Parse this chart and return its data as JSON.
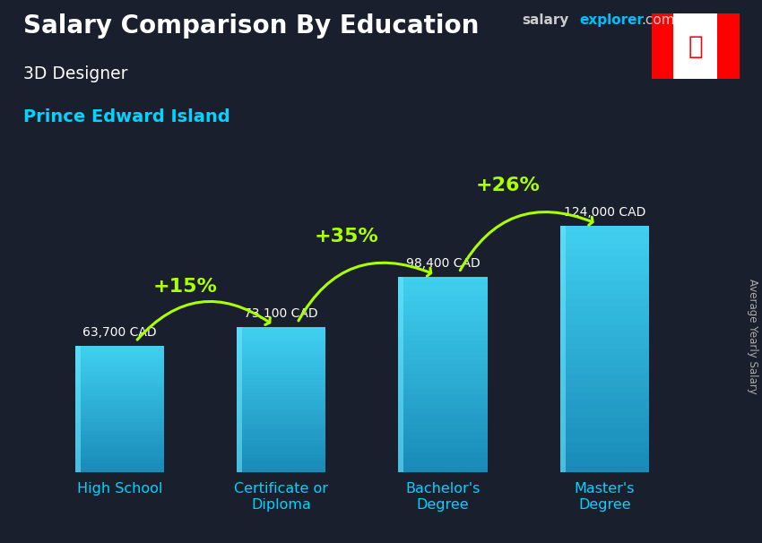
{
  "title": "Salary Comparison By Education",
  "subtitle_job": "3D Designer",
  "subtitle_location": "Prince Edward Island",
  "categories": [
    "High School",
    "Certificate or\nDiploma",
    "Bachelor's\nDegree",
    "Master's\nDegree"
  ],
  "values": [
    63700,
    73100,
    98400,
    124000
  ],
  "value_labels": [
    "63,700 CAD",
    "73,100 CAD",
    "98,400 CAD",
    "124,000 CAD"
  ],
  "pct_labels": [
    "+15%",
    "+35%",
    "+26%"
  ],
  "bar_color_main": "#29b8e0",
  "bar_color_light": "#55d4f5",
  "bar_color_dark": "#1a7fa0",
  "bar_color_side": "#1a9fc0",
  "bg_color": "#1a1f2e",
  "title_color": "#ffffff",
  "subtitle_job_color": "#ffffff",
  "subtitle_location_color": "#00d4ff",
  "value_label_color": "#ffffff",
  "pct_color": "#aaff00",
  "xlabel_color": "#00d4ff",
  "ylabel_text": "Average Yearly Salary",
  "salary_wm_color": "#cccccc",
  "explorer_wm_color": "#00bfff",
  "ylim": [
    0,
    150000
  ],
  "bar_width": 0.55,
  "figsize": [
    8.5,
    6.06
  ],
  "dpi": 100
}
